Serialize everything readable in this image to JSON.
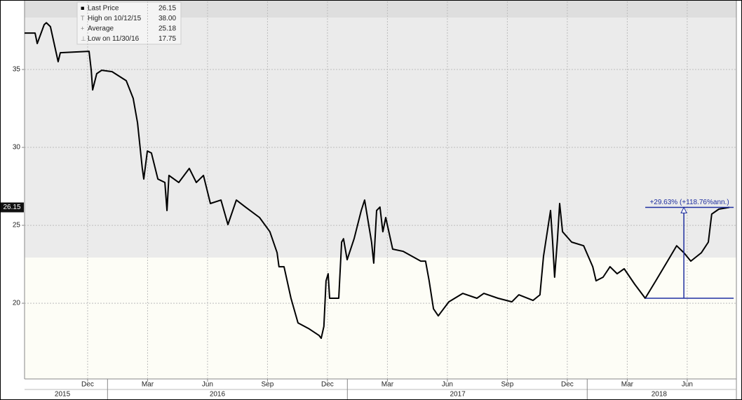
{
  "chart_data": {
    "type": "line",
    "legend": [
      {
        "label": "Last Price",
        "value": "26.15"
      },
      {
        "label": "High on 10/12/15",
        "value": "38.00"
      },
      {
        "label": "Average",
        "value": "25.18"
      },
      {
        "label": "Low on 11/30/16",
        "value": "17.75"
      }
    ],
    "annotation": "+29.63% (+118.76%ann.)",
    "annotation_color": "#1f2fa0",
    "xlim": [
      2015.654,
      2018.622
    ],
    "ylim": [
      15.14,
      39.37
    ],
    "yticks": [
      20,
      25,
      30,
      35
    ],
    "xticks": [
      {
        "value": 2015.917,
        "label": "Dec"
      },
      {
        "value": 2016.167,
        "label": "Mar"
      },
      {
        "value": 2016.417,
        "label": "Jun"
      },
      {
        "value": 2016.667,
        "label": "Sep"
      },
      {
        "value": 2016.917,
        "label": "Dec"
      },
      {
        "value": 2017.167,
        "label": "Mar"
      },
      {
        "value": 2017.417,
        "label": "Jun"
      },
      {
        "value": 2017.667,
        "label": "Sep"
      },
      {
        "value": 2017.917,
        "label": "Dec"
      },
      {
        "value": 2018.167,
        "label": "Mar"
      },
      {
        "value": 2018.417,
        "label": "Jun"
      }
    ],
    "year_ticks": [
      {
        "value": 2015.812,
        "label": "2015"
      },
      {
        "value": 2016.458,
        "label": "2016"
      },
      {
        "value": 2017.46,
        "label": "2017"
      },
      {
        "value": 2018.3,
        "label": "2018"
      }
    ],
    "grid": true,
    "series": [
      {
        "name": "Last Price",
        "color": "#000000",
        "x": [
          2015.654,
          2015.698,
          2015.707,
          2015.736,
          2015.745,
          2015.762,
          2015.794,
          2015.803,
          2015.923,
          2015.932,
          2015.938,
          2015.955,
          2015.976,
          2016.019,
          2016.078,
          2016.107,
          2016.125,
          2016.145,
          2016.151,
          2016.166,
          2016.183,
          2016.21,
          2016.239,
          2016.248,
          2016.256,
          2016.297,
          2016.341,
          2016.37,
          2016.4,
          2016.429,
          2016.473,
          2016.502,
          2016.537,
          2016.575,
          2016.634,
          2016.677,
          2016.707,
          2016.715,
          2016.736,
          2016.765,
          2016.794,
          2016.838,
          2016.882,
          2016.891,
          2016.902,
          2016.911,
          2016.92,
          2016.926,
          2016.964,
          2016.976,
          2016.984,
          2016.999,
          2017.028,
          2017.058,
          2017.072,
          2017.101,
          2017.11,
          2017.122,
          2017.136,
          2017.148,
          2017.16,
          2017.189,
          2017.233,
          2017.306,
          2017.326,
          2017.341,
          2017.359,
          2017.379,
          2017.423,
          2017.481,
          2017.54,
          2017.569,
          2017.628,
          2017.686,
          2017.715,
          2017.774,
          2017.803,
          2017.818,
          2017.847,
          2017.856,
          2017.864,
          2017.876,
          2017.885,
          2017.897,
          2017.935,
          2017.985,
          2018.023,
          2018.037,
          2018.066,
          2018.095,
          2018.125,
          2018.154,
          2018.198,
          2018.242,
          2018.286,
          2018.33,
          2018.373,
          2018.403,
          2018.432,
          2018.476,
          2018.505,
          2018.519,
          2018.549,
          2018.593
        ],
        "values": [
          37.34,
          37.34,
          36.67,
          37.88,
          38.0,
          37.75,
          35.5,
          36.08,
          36.17,
          34.95,
          33.69,
          34.73,
          34.95,
          34.86,
          34.28,
          33.15,
          31.58,
          28.65,
          27.97,
          29.77,
          29.64,
          27.97,
          27.75,
          25.95,
          28.2,
          27.75,
          28.65,
          27.75,
          28.2,
          26.4,
          26.62,
          25.05,
          26.62,
          26.17,
          25.5,
          24.59,
          23.24,
          22.34,
          22.34,
          20.32,
          18.74,
          18.38,
          17.93,
          17.75,
          18.51,
          21.44,
          21.89,
          20.32,
          20.32,
          23.92,
          24.14,
          22.79,
          24.14,
          25.95,
          26.62,
          23.92,
          22.57,
          25.95,
          26.17,
          24.59,
          25.5,
          23.47,
          23.33,
          22.7,
          22.7,
          21.44,
          19.64,
          19.19,
          20.09,
          20.63,
          20.32,
          20.63,
          20.32,
          20.09,
          20.54,
          20.18,
          20.54,
          23.02,
          25.95,
          23.92,
          21.67,
          24.14,
          26.4,
          24.59,
          23.92,
          23.69,
          22.34,
          21.44,
          21.67,
          22.34,
          21.89,
          22.21,
          21.22,
          20.32,
          21.44,
          22.57,
          23.69,
          23.24,
          22.7,
          23.24,
          23.92,
          25.72,
          26.04,
          26.15
        ]
      }
    ]
  }
}
